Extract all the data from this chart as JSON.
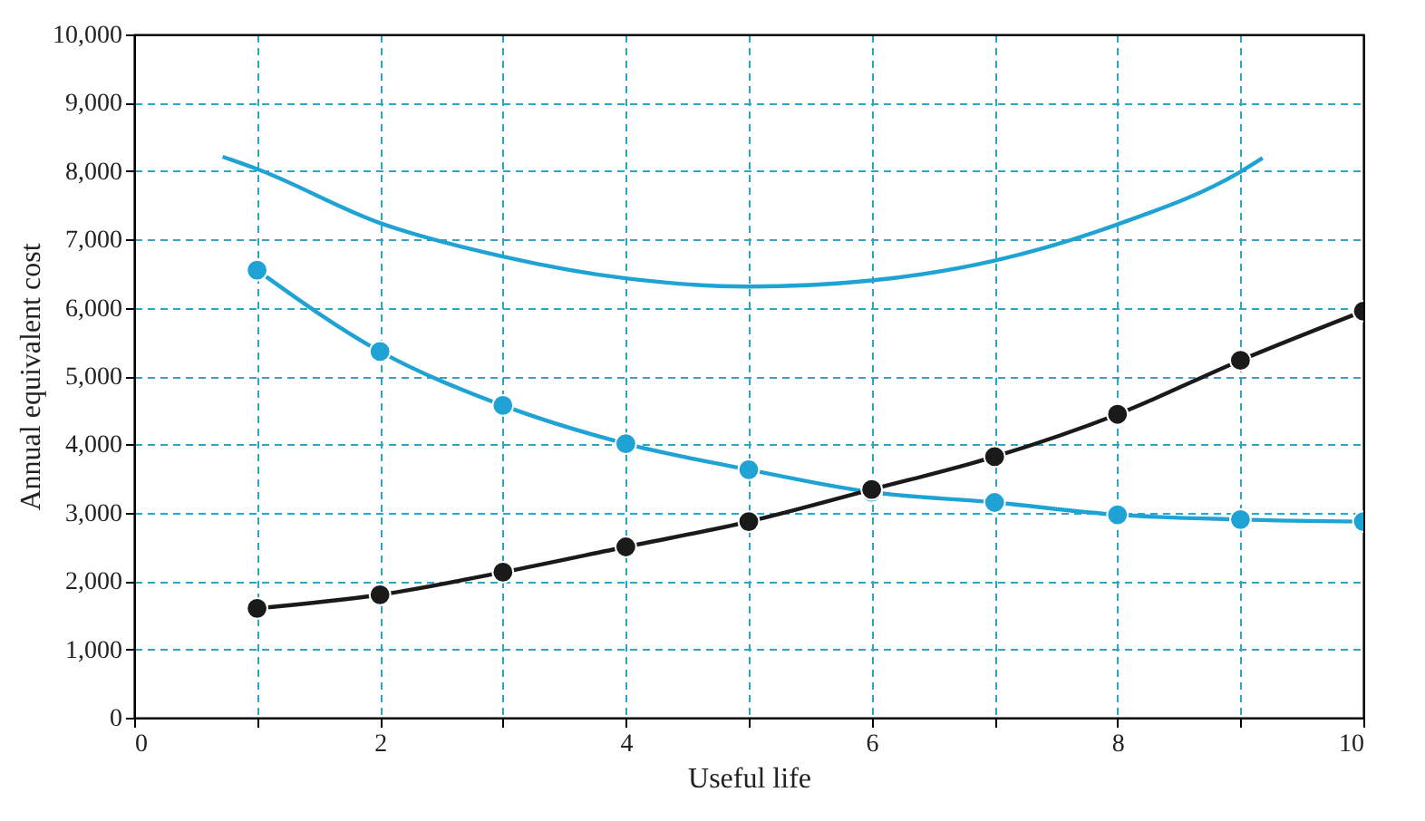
{
  "chart_data": {
    "type": "line",
    "xlabel": "Useful life",
    "ylabel": "Annual equivalent cost",
    "xlim": [
      0,
      10
    ],
    "ylim": [
      0,
      10000
    ],
    "xticks": [
      0,
      {
        "value": 1,
        "label": null
      },
      2,
      {
        "value": 3,
        "label": null
      },
      4,
      {
        "value": 5,
        "label": null
      },
      6,
      {
        "value": 7,
        "label": null
      },
      8,
      {
        "value": 9,
        "label": null
      },
      10
    ],
    "yticks": [
      0,
      {
        "value": 1000,
        "label": "1,000"
      },
      {
        "value": 2000,
        "label": "2,000"
      },
      {
        "value": 3000,
        "label": "3,000"
      },
      {
        "value": 4000,
        "label": "4,000"
      },
      {
        "value": 5000,
        "label": "5,000"
      },
      {
        "value": 6000,
        "label": "6,000"
      },
      {
        "value": 7000,
        "label": "7,000"
      },
      {
        "value": 8000,
        "label": "8,000"
      },
      {
        "value": 9000,
        "label": "9,000"
      },
      {
        "value": 10000,
        "label": "10,000"
      }
    ],
    "grid": true,
    "line_style": "solid",
    "series": [
      {
        "color": "#1fa3d4",
        "marker": "none",
        "x": [
          0.72,
          1,
          2,
          3,
          4,
          5,
          6,
          7,
          8,
          9,
          9.18
        ],
        "values": [
          8210,
          8030,
          7240,
          6750,
          6430,
          6310,
          6400,
          6690,
          7220,
          7990,
          8190
        ]
      },
      {
        "color": "#1fa3d4",
        "marker": "circle",
        "x": [
          1,
          2,
          3,
          4,
          5,
          6,
          7,
          8,
          9,
          10
        ],
        "values": [
          6550,
          5360,
          4570,
          4010,
          3630,
          3300,
          3150,
          2970,
          2900,
          2870
        ]
      },
      {
        "color": "#1a1a1a",
        "marker": "circle",
        "x": [
          1,
          2,
          3,
          4,
          5,
          6,
          7,
          8,
          9,
          10
        ],
        "values": [
          1600,
          1800,
          2130,
          2500,
          2870,
          3340,
          3820,
          4440,
          5230,
          5950
        ]
      }
    ]
  }
}
